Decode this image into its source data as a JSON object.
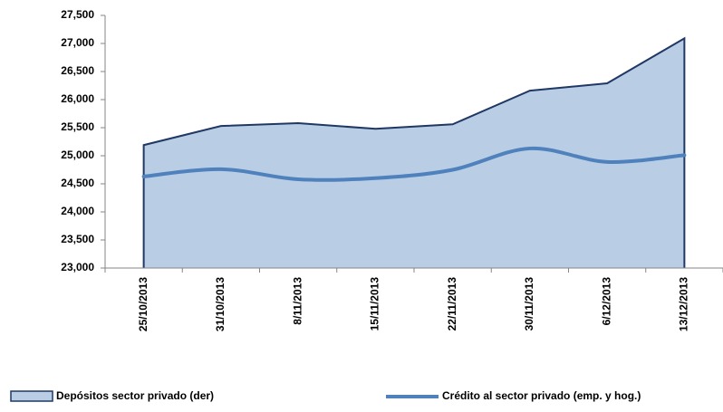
{
  "chart_data": {
    "type": "area-line",
    "categories": [
      "25/10/2013",
      "31/10/2013",
      "8/11/2013",
      "15/11/2013",
      "22/11/2013",
      "30/11/2013",
      "6/12/2013",
      "13/12/2013"
    ],
    "series": [
      {
        "name": "Depósitos sector privado (der)",
        "type": "area",
        "color": "#b9cde5",
        "stroke": "#1f3864",
        "values": [
          25190,
          25530,
          25580,
          25480,
          25560,
          26160,
          26290,
          27090
        ]
      },
      {
        "name": "Crédito al sector privado (emp. y hog.)",
        "type": "line",
        "color": "#4f81bd",
        "values": [
          24630,
          24760,
          24580,
          24600,
          24750,
          25130,
          24890,
          25010
        ]
      }
    ],
    "ylim": [
      23000,
      27500
    ],
    "yticks": [
      {
        "value": 23000,
        "label": "23,000"
      },
      {
        "value": 23500,
        "label": "23,500"
      },
      {
        "value": 24000,
        "label": "24,000"
      },
      {
        "value": 24500,
        "label": "24,500"
      },
      {
        "value": 25000,
        "label": "25,000"
      },
      {
        "value": 25500,
        "label": "25,500"
      },
      {
        "value": 26000,
        "label": "26,000"
      },
      {
        "value": 26500,
        "label": "26,500"
      },
      {
        "value": 27000,
        "label": "27,000"
      },
      {
        "value": 27500,
        "label": "27,500"
      }
    ],
    "grid": false
  }
}
